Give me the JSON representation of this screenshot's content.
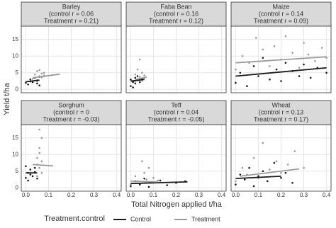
{
  "chart_data": {
    "type": "scatter",
    "y_label": "Yield t/ha",
    "x_label": "Total Nitrogen applied t/ha",
    "legend_title": "Treatment.control",
    "legend": [
      "Control",
      "Treatment"
    ],
    "colors": [
      "#1a1a1a",
      "#9a9a9a"
    ],
    "xlim": [
      -0.02,
      0.42
    ],
    "xticks": [
      {
        "value": 0,
        "label": "0.0"
      },
      0.1,
      0.2,
      0.3,
      0.4
    ],
    "ylim": [
      -1,
      19
    ],
    "yticks": [
      0,
      5,
      10,
      15
    ],
    "grid": true,
    "facets": [
      {
        "strip": [
          "Barley",
          "(control r = 0.06",
          "Treatment r = 0.21)"
        ],
        "series": [
          {
            "x": [
              0.0,
              0.01,
              0.02,
              0.02,
              0.03,
              0.04,
              0.05,
              0.05,
              0.06,
              0.06
            ],
            "values": [
              2.0,
              1.5,
              3.0,
              2.4,
              2.2,
              3.5,
              1.8,
              2.6,
              3.8,
              1.2
            ],
            "fit": {
              "x": [
                0.0,
                0.06
              ],
              "values": [
                2.3,
                2.8
              ]
            }
          },
          {
            "x": [
              0.03,
              0.04,
              0.05,
              0.05,
              0.06,
              0.06,
              0.07,
              0.07,
              0.08,
              0.08
            ],
            "values": [
              3.2,
              4.5,
              5.5,
              2.8,
              4.0,
              5.8,
              3.6,
              4.8,
              4.2,
              5.0
            ],
            "fit": {
              "x": [
                0.03,
                0.15
              ],
              "values": [
                3.5,
                4.6
              ]
            }
          }
        ]
      },
      {
        "strip": [
          "Faba Bean",
          "(control r = 0.16",
          "Treatment r = 0.12)"
        ],
        "series": [
          {
            "x": [
              0.0,
              0.0,
              0.01,
              0.01,
              0.02,
              0.02,
              0.03,
              0.03,
              0.04,
              0.05
            ],
            "values": [
              1.0,
              3.0,
              2.2,
              0.6,
              3.5,
              1.8,
              2.8,
              4.0,
              2.2,
              3.2
            ],
            "fit": {
              "x": [
                0.0,
                0.06
              ],
              "values": [
                2.5,
                3.0
              ]
            }
          },
          {
            "x": [
              0.02,
              0.02,
              0.03,
              0.03,
              0.04,
              0.04,
              0.05,
              0.05,
              0.06,
              0.06
            ],
            "values": [
              2.5,
              4.5,
              3.0,
              6.0,
              3.8,
              9.0,
              2.6,
              5.0,
              3.4,
              4.2
            ],
            "fit": {
              "x": [
                0.02,
                0.07
              ],
              "values": [
                3.0,
                3.7
              ]
            }
          }
        ]
      },
      {
        "strip": [
          "Maize",
          "(control r = 0.14",
          "Treatment r = 0.09)"
        ],
        "series": [
          {
            "x": [
              0.0,
              0.02,
              0.05,
              0.08,
              0.1,
              0.12,
              0.15,
              0.18,
              0.2,
              0.22,
              0.25,
              0.28,
              0.3,
              0.33,
              0.36,
              0.4
            ],
            "values": [
              2.0,
              5.0,
              1.0,
              7.0,
              4.0,
              9.5,
              3.0,
              6.0,
              2.5,
              8.0,
              5.5,
              4.0,
              7.5,
              3.5,
              6.5,
              5.0
            ],
            "fit": {
              "x": [
                0.0,
                0.4
              ],
              "values": [
                4.0,
                6.5
              ]
            }
          },
          {
            "x": [
              0.0,
              0.03,
              0.06,
              0.09,
              0.12,
              0.15,
              0.17,
              0.2,
              0.22,
              0.25,
              0.28,
              0.3,
              0.32,
              0.35,
              0.38,
              0.4
            ],
            "values": [
              6.0,
              10.0,
              8.0,
              15.5,
              12.0,
              7.0,
              13.0,
              9.0,
              16.0,
              11.0,
              6.5,
              14.0,
              10.5,
              8.5,
              12.5,
              9.5
            ],
            "fit": {
              "x": [
                0.0,
                0.4
              ],
              "values": [
                8.0,
                9.8
              ]
            }
          }
        ]
      },
      {
        "strip": [
          "Sorghum",
          "(control r = 0",
          "Treatment r = -0.03)"
        ],
        "series": [
          {
            "x": [
              0.0,
              0.0,
              0.01,
              0.01,
              0.02,
              0.02,
              0.03,
              0.04,
              0.04,
              0.05
            ],
            "values": [
              3.0,
              6.5,
              4.5,
              2.2,
              5.5,
              4.0,
              3.5,
              6.0,
              4.8,
              2.8
            ],
            "fit": {
              "x": [
                0.0,
                0.05
              ],
              "values": [
                4.5,
                4.5
              ]
            }
          },
          {
            "x": [
              0.05,
              0.05,
              0.06,
              0.06,
              0.06,
              0.07,
              0.07,
              0.07,
              0.06,
              0.05
            ],
            "values": [
              3.5,
              9.0,
              17.5,
              6.0,
              12.0,
              4.5,
              8.0,
              15.0,
              10.5,
              7.0
            ],
            "fit": {
              "x": [
                0.03,
                0.12
              ],
              "values": [
                7.0,
                6.6
              ]
            }
          }
        ]
      },
      {
        "strip": [
          "Teff",
          "(control r = 0.04",
          "Treatment r = -0.05)"
        ],
        "series": [
          {
            "x": [
              0.0,
              0.02,
              0.04,
              0.06,
              0.08,
              0.1,
              0.13,
              0.16,
              0.2,
              0.24
            ],
            "values": [
              0.5,
              2.0,
              1.0,
              2.8,
              0.3,
              1.6,
              2.2,
              0.8,
              1.5,
              2.0
            ],
            "fit": {
              "x": [
                0.0,
                0.25
              ],
              "values": [
                1.3,
                1.8
              ]
            }
          },
          {
            "x": [
              0.0,
              0.02,
              0.03,
              0.05,
              0.06,
              0.07,
              0.08,
              0.09,
              0.1,
              0.12
            ],
            "values": [
              1.0,
              3.5,
              2.0,
              8.0,
              4.5,
              2.5,
              6.0,
              1.5,
              3.0,
              2.2
            ],
            "fit": {
              "x": [
                0.0,
                0.12
              ],
              "values": [
                2.0,
                1.8
              ]
            }
          }
        ]
      },
      {
        "strip": [
          "Wheat",
          "(control r = 0.13",
          "Treatment r = 0.17)"
        ],
        "series": [
          {
            "x": [
              0.0,
              0.02,
              0.04,
              0.06,
              0.08,
              0.1,
              0.12,
              0.14,
              0.17,
              0.2,
              0.22,
              0.25
            ],
            "values": [
              1.0,
              4.0,
              2.5,
              6.0,
              0.5,
              3.5,
              5.0,
              2.0,
              7.5,
              3.0,
              4.5,
              1.5
            ],
            "fit": {
              "x": [
                0.0,
                0.2
              ],
              "values": [
                2.8,
                3.5
              ]
            }
          },
          {
            "x": [
              0.0,
              0.03,
              0.05,
              0.08,
              0.1,
              0.12,
              0.15,
              0.18,
              0.2,
              0.23,
              0.26,
              0.3
            ],
            "values": [
              2.0,
              6.0,
              4.0,
              9.0,
              3.0,
              13.5,
              5.5,
              8.0,
              4.5,
              7.0,
              11.0,
              6.0
            ],
            "fit": {
              "x": [
                0.02,
                0.28
              ],
              "values": [
                3.5,
                5.7
              ]
            }
          }
        ]
      }
    ]
  }
}
